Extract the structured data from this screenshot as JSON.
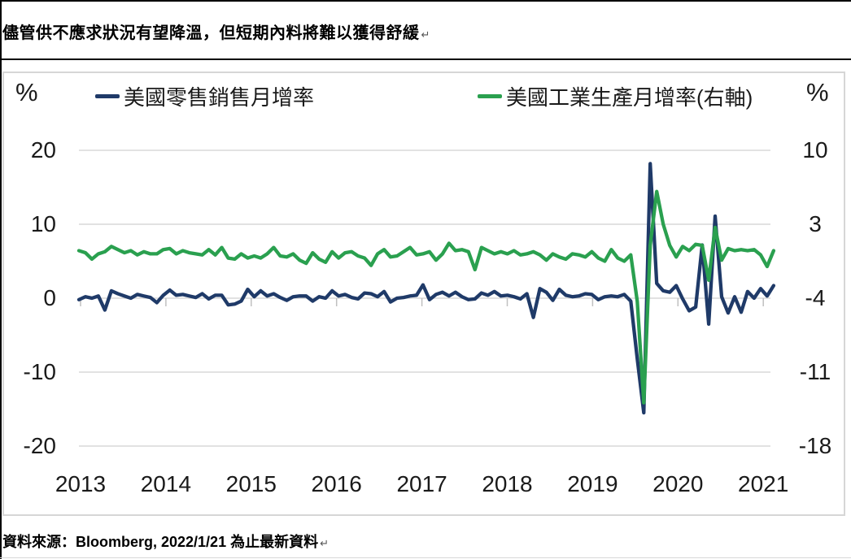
{
  "page": {
    "title": "儘管供不應求狀況有望降溫，但短期內料將難以獲得舒緩",
    "title_mark": "↵",
    "source": "資料來源：Bloomberg, 2022/1/21 為止最新資料",
    "source_mark": "↵"
  },
  "chart_data": {
    "type": "line",
    "x_start": "2013-01",
    "x_end": "2021-12",
    "x_ticks": [
      "2013",
      "2014",
      "2015",
      "2016",
      "2017",
      "2018",
      "2019",
      "2020",
      "2021"
    ],
    "grid": true,
    "legend_position": "top",
    "left_axis": {
      "label": "%",
      "ticks": [
        20,
        10,
        0,
        -10,
        -20
      ]
    },
    "right_axis": {
      "label": "%",
      "ticks": [
        10,
        3,
        -4,
        -11,
        -18
      ]
    },
    "colors": {
      "gridline": "#d9d9d9",
      "axis_tick": "#c0c0c0",
      "border": "#d6d6d6"
    },
    "series": [
      {
        "name": "美國零售銷售月增率",
        "axis": "left",
        "color": "#1f3a68",
        "values": [
          -0.2,
          0.2,
          0.0,
          0.3,
          -1.6,
          1.0,
          0.6,
          0.3,
          0.0,
          0.5,
          0.3,
          0.1,
          -0.6,
          0.4,
          1.1,
          0.4,
          0.5,
          0.3,
          0.1,
          0.6,
          -0.1,
          0.4,
          0.4,
          -0.9,
          -0.8,
          -0.4,
          1.2,
          0.2,
          1.0,
          0.3,
          0.6,
          0.1,
          -0.3,
          0.2,
          0.3,
          0.3,
          -0.4,
          0.2,
          0.0,
          1.0,
          0.3,
          0.5,
          0.1,
          -0.1,
          0.7,
          0.6,
          0.2,
          0.9,
          -0.5,
          0.0,
          0.1,
          0.3,
          0.4,
          1.8,
          -0.2,
          0.5,
          0.8,
          0.3,
          0.8,
          0.2,
          -0.2,
          -0.1,
          0.7,
          0.4,
          0.9,
          0.3,
          0.4,
          0.2,
          -0.1,
          0.6,
          -2.6,
          1.3,
          0.8,
          -0.3,
          1.2,
          0.4,
          0.2,
          0.3,
          0.6,
          0.5,
          -0.2,
          0.2,
          0.3,
          0.2,
          0.5,
          -0.4,
          -8.2,
          -15.5,
          18.2,
          2.0,
          1.0,
          0.8,
          1.7,
          -0.1,
          -1.7,
          -1.2,
          7.2,
          -3.5,
          11.1,
          0.2,
          -2.0,
          0.2,
          -1.9,
          0.9,
          0.0,
          1.3,
          0.3,
          1.7
        ]
      },
      {
        "name": "美國工業生產月增率(右軸)",
        "axis": "right",
        "color": "#2aa04f",
        "values": [
          0.5,
          0.3,
          -0.3,
          0.2,
          0.4,
          0.9,
          0.6,
          0.3,
          0.5,
          0.1,
          0.4,
          0.2,
          0.2,
          0.6,
          0.7,
          0.2,
          0.5,
          0.3,
          0.2,
          0.1,
          0.6,
          0.1,
          0.8,
          -0.2,
          -0.3,
          0.2,
          -0.2,
          0.0,
          -0.2,
          0.2,
          0.8,
          0.0,
          -0.1,
          0.2,
          -0.4,
          -0.7,
          0.3,
          -0.3,
          -0.6,
          0.4,
          -0.2,
          0.3,
          0.4,
          0.0,
          -0.2,
          -0.9,
          0.2,
          0.6,
          -0.1,
          0.0,
          0.4,
          0.8,
          0.1,
          0.2,
          0.4,
          -0.4,
          0.2,
          1.2,
          0.5,
          0.6,
          0.4,
          -1.3,
          0.8,
          0.5,
          0.2,
          0.4,
          0.2,
          0.5,
          0.1,
          0.2,
          0.4,
          0.1,
          -0.4,
          0.2,
          -0.1,
          -0.3,
          0.2,
          0.1,
          -0.1,
          0.4,
          -0.2,
          -0.5,
          0.6,
          -0.2,
          -0.5,
          0.1,
          -4.3,
          -13.9,
          1.0,
          6.1,
          3.0,
          1.0,
          -0.1,
          0.9,
          0.5,
          1.1,
          1.0,
          -2.3,
          2.7,
          -0.4,
          0.7,
          0.5,
          0.6,
          0.5,
          0.6,
          0.1,
          -1.0,
          0.5
        ]
      }
    ]
  }
}
